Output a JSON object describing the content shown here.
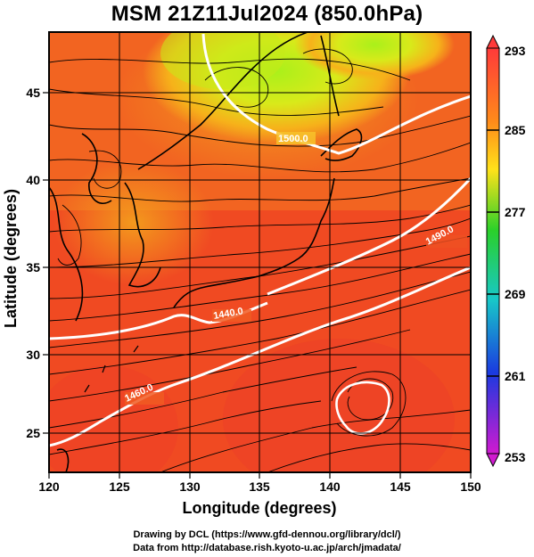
{
  "title": "MSM 21Z11Jul2024 (850.0hPa)",
  "map": {
    "xlabel": "Longitude (degrees)",
    "ylabel": "Latitude  (degrees)",
    "lon_range": [
      120,
      150
    ],
    "lat_range": [
      22.4,
      47.6
    ],
    "x_ticks": [
      "120",
      "125",
      "130",
      "135",
      "140",
      "145",
      "150"
    ],
    "y_ticks": [
      "25",
      "30",
      "35",
      "40",
      "45"
    ],
    "contours": [
      {
        "label": "1500.0"
      },
      {
        "label": "1490.0"
      },
      {
        "label": "1440.0"
      },
      {
        "label": "1460.0"
      }
    ]
  },
  "colorbar": {
    "min": 253,
    "max": 293,
    "labels": [
      "293",
      "285",
      "277",
      "269",
      "261",
      "253"
    ],
    "colors": [
      "#ff3a3a",
      "#ff8a1a",
      "#ffe21a",
      "#2ad02a",
      "#18c8c8",
      "#1a3ae0",
      "#d01ad0"
    ]
  },
  "credits": {
    "line1": "Drawing by DCL (https://www.gfd-dennou.org/library/dcl/)",
    "line2": "Data from http://database.rish.kyoto-u.ac.jp/arch/jmadata/"
  }
}
